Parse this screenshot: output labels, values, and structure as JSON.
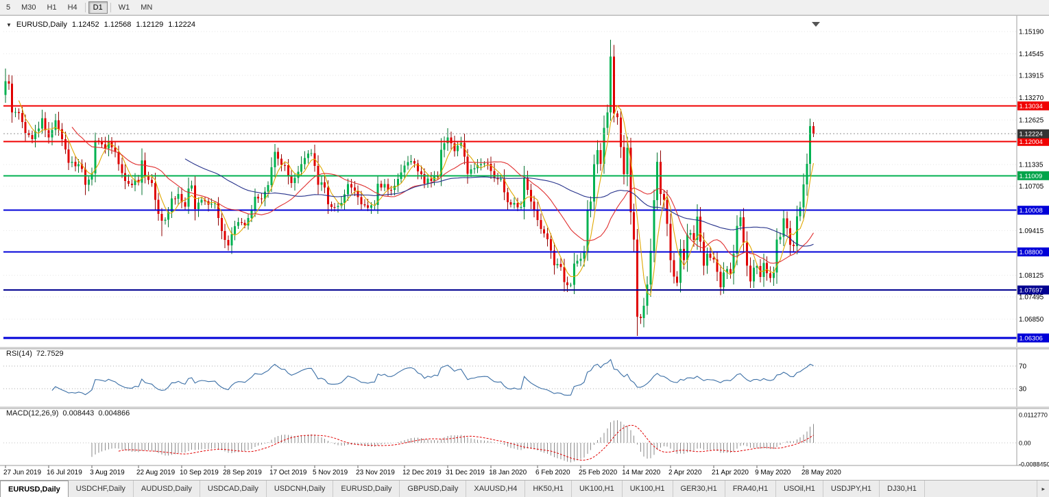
{
  "toolbar": {
    "timeframes": [
      "5",
      "M30",
      "H1",
      "H4",
      "D1",
      "W1",
      "MN"
    ],
    "active": "D1"
  },
  "chart": {
    "symbol_label": "EURUSD,Daily",
    "ohlc": {
      "open": "1.12452",
      "high": "1.12568",
      "low": "1.12129",
      "close": "1.12224"
    },
    "icons": {
      "expand": "▼"
    }
  },
  "rsi": {
    "name": "RSI(14)",
    "value": "72.7529"
  },
  "macd": {
    "name": "MACD(12,26,9)",
    "value_main": "0.008443",
    "value_signal": "0.004866"
  },
  "tabs": {
    "active_index": 0,
    "scroll_icon": "▸",
    "labels": [
      "EURUSD,Daily",
      "USDCHF,Daily",
      "AUDUSD,Daily",
      "USDCAD,Daily",
      "USDCNH,Daily",
      "EURUSD,Daily",
      "GBPUSD,Daily",
      "XAUUSD,H4",
      "HK50,H1",
      "UK100,H1",
      "UK100,H1",
      "GER30,H1",
      "FRA40,H1",
      "USOil,H1",
      "USDJPY,H1",
      "DJ30,H1"
    ]
  },
  "chart_data": {
    "type": "candlestick",
    "title": "EURUSD,Daily",
    "symbol": "EURUSD",
    "timeframe": "Daily",
    "bars": 244,
    "ylim": [
      1.0605,
      1.1549
    ],
    "current_price": 1.12224,
    "x_axis": {
      "labels": [
        "27 Jun 2019",
        "16 Jul 2019",
        "3 Aug 2019",
        "22 Aug 2019",
        "10 Sep 2019",
        "28 Sep 2019",
        "17 Oct 2019",
        "5 Nov 2019",
        "23 Nov 2019",
        "12 Dec 2019",
        "31 Dec 2019",
        "18 Jan 2020",
        "6 Feb 2020",
        "25 Feb 2020",
        "14 Mar 2020",
        "2 Apr 2020",
        "21 Apr 2020",
        "9 May 2020",
        "28 May 2020"
      ],
      "indices": [
        0,
        13,
        26,
        40,
        53,
        66,
        80,
        93,
        106,
        120,
        133,
        146,
        160,
        173,
        186,
        200,
        213,
        226,
        240
      ]
    },
    "y_axis": {
      "ticks": [
        "1.15190",
        "1.14545",
        "1.13915",
        "1.13270",
        "1.12625",
        "1.11335",
        "1.10705",
        "1.09415",
        "1.08125",
        "1.07495",
        "1.06850"
      ],
      "ref_price": 1.1519
    },
    "close_anchors": [
      [
        0,
        1.1375
      ],
      [
        1,
        1.1368
      ],
      [
        2,
        1.1285
      ],
      [
        4,
        1.1282
      ],
      [
        6,
        1.1225
      ],
      [
        8,
        1.1207
      ],
      [
        11,
        1.1268
      ],
      [
        13,
        1.1212
      ],
      [
        15,
        1.1262
      ],
      [
        17,
        1.1207
      ],
      [
        19,
        1.1138
      ],
      [
        21,
        1.1128
      ],
      [
        23,
        1.112
      ],
      [
        24,
        1.1075
      ],
      [
        26,
        1.1108
      ],
      [
        27,
        1.1203
      ],
      [
        28,
        1.12
      ],
      [
        30,
        1.118
      ],
      [
        31,
        1.12
      ],
      [
        33,
        1.117
      ],
      [
        35,
        1.1109
      ],
      [
        37,
        1.1078
      ],
      [
        39,
        1.1089
      ],
      [
        40,
        1.1081
      ],
      [
        41,
        1.1145
      ],
      [
        42,
        1.1101
      ],
      [
        44,
        1.108
      ],
      [
        46,
        1.099
      ],
      [
        47,
        1.097
      ],
      [
        48,
        1.0973
      ],
      [
        50,
        1.1035
      ],
      [
        52,
        1.1048
      ],
      [
        54,
        1.1011
      ],
      [
        55,
        1.1064
      ],
      [
        56,
        1.1073
      ],
      [
        57,
        1.1004
      ],
      [
        59,
        1.1031
      ],
      [
        61,
        1.1017
      ],
      [
        63,
        1.1021
      ],
      [
        65,
        1.0941
      ],
      [
        67,
        1.0899
      ],
      [
        68,
        1.0932
      ],
      [
        70,
        1.0966
      ],
      [
        72,
        1.0957
      ],
      [
        74,
        1.1002
      ],
      [
        75,
        1.104
      ],
      [
        77,
        1.1033
      ],
      [
        79,
        1.1074
      ],
      [
        80,
        1.1125
      ],
      [
        81,
        1.117
      ],
      [
        82,
        1.115
      ],
      [
        84,
        1.1131
      ],
      [
        86,
        1.108
      ],
      [
        88,
        1.1113
      ],
      [
        90,
        1.1152
      ],
      [
        92,
        1.1166
      ],
      [
        94,
        1.1075
      ],
      [
        96,
        1.1067
      ],
      [
        97,
        1.1018
      ],
      [
        99,
        1.101
      ],
      [
        101,
        1.1022
      ],
      [
        103,
        1.1077
      ],
      [
        105,
        1.1058
      ],
      [
        107,
        1.1018
      ],
      [
        109,
        1.1008
      ],
      [
        111,
        1.1016
      ],
      [
        112,
        1.1078
      ],
      [
        114,
        1.1077
      ],
      [
        116,
        1.106
      ],
      [
        118,
        1.1092
      ],
      [
        120,
        1.113
      ],
      [
        122,
        1.1143
      ],
      [
        124,
        1.1114
      ],
      [
        126,
        1.1078
      ],
      [
        128,
        1.1086
      ],
      [
        130,
        1.1098
      ],
      [
        131,
        1.1176
      ],
      [
        133,
        1.1212
      ],
      [
        135,
        1.1172
      ],
      [
        137,
        1.1196
      ],
      [
        139,
        1.1107
      ],
      [
        141,
        1.1122
      ],
      [
        143,
        1.1134
      ],
      [
        145,
        1.1135
      ],
      [
        147,
        1.1095
      ],
      [
        149,
        1.1092
      ],
      [
        151,
        1.1024
      ],
      [
        153,
        1.1022
      ],
      [
        155,
        1.101
      ],
      [
        156,
        1.1094
      ],
      [
        157,
        1.106
      ],
      [
        159,
        1.1
      ],
      [
        161,
        1.0946
      ],
      [
        163,
        1.0917
      ],
      [
        165,
        1.0841
      ],
      [
        167,
        1.0836
      ],
      [
        168,
        1.0792
      ],
      [
        170,
        1.0785
      ],
      [
        171,
        1.0846
      ],
      [
        172,
        1.0854
      ],
      [
        174,
        1.0881
      ],
      [
        175,
        1.0999
      ],
      [
        176,
        1.1026
      ],
      [
        177,
        1.1134
      ],
      [
        178,
        1.1175
      ],
      [
        179,
        1.1135
      ],
      [
        180,
        1.124
      ],
      [
        181,
        1.1284
      ],
      [
        182,
        1.1446
      ],
      [
        183,
        1.1281
      ],
      [
        184,
        1.127
      ],
      [
        185,
        1.1184
      ],
      [
        186,
        1.1105
      ],
      [
        187,
        1.1182
      ],
      [
        188,
        1.0995
      ],
      [
        189,
        1.0916
      ],
      [
        190,
        1.0692
      ],
      [
        191,
        1.0688
      ],
      [
        192,
        1.0724
      ],
      [
        193,
        1.0786
      ],
      [
        194,
        1.0883
      ],
      [
        195,
        1.103
      ],
      [
        196,
        1.1141
      ],
      [
        197,
        1.1048
      ],
      [
        198,
        1.1031
      ],
      [
        199,
        1.0961
      ],
      [
        200,
        1.0856
      ],
      [
        201,
        1.0808
      ],
      [
        202,
        1.0791
      ],
      [
        203,
        1.0889
      ],
      [
        204,
        1.0856
      ],
      [
        205,
        1.093
      ],
      [
        206,
        1.0935
      ],
      [
        207,
        1.0915
      ],
      [
        208,
        1.0982
      ],
      [
        209,
        1.091
      ],
      [
        210,
        1.084
      ],
      [
        211,
        1.0875
      ],
      [
        212,
        1.0863
      ],
      [
        213,
        1.0858
      ],
      [
        214,
        1.0822
      ],
      [
        215,
        1.0778
      ],
      [
        216,
        1.082
      ],
      [
        217,
        1.083
      ],
      [
        218,
        1.0818
      ],
      [
        219,
        1.0875
      ],
      [
        220,
        1.0955
      ],
      [
        221,
        1.098
      ],
      [
        222,
        1.0907
      ],
      [
        223,
        1.084
      ],
      [
        224,
        1.0794
      ],
      [
        225,
        1.0834
      ],
      [
        226,
        1.0839
      ],
      [
        227,
        1.0807
      ],
      [
        228,
        1.0848
      ],
      [
        229,
        1.0818
      ],
      [
        230,
        1.0804
      ],
      [
        231,
        1.082
      ],
      [
        232,
        1.0916
      ],
      [
        233,
        1.0924
      ],
      [
        234,
        1.0977
      ],
      [
        235,
        1.0949
      ],
      [
        236,
        1.0901
      ],
      [
        237,
        1.0897
      ],
      [
        238,
        1.0983
      ],
      [
        239,
        1.1009
      ],
      [
        240,
        1.1076
      ],
      [
        241,
        1.1135
      ],
      [
        242,
        1.1245
      ],
      [
        243,
        1.1222
      ]
    ],
    "extremes": {
      "0": {
        "high": 1.1412
      },
      "47": {
        "low": 1.0926
      },
      "133": {
        "high": 1.1239
      },
      "170": {
        "low": 1.0778
      },
      "182": {
        "high": 1.1495
      },
      "190": {
        "low": 1.0636
      },
      "242": {
        "high": 1.1267
      },
      "243": {
        "high": 1.12568,
        "low": 1.12129
      }
    },
    "hlines": [
      {
        "price": 1.13034,
        "color": "#f00000",
        "width": 2
      },
      {
        "price": 1.12004,
        "color": "#f00000",
        "width": 2
      },
      {
        "price": 1.11009,
        "color": "#00b050",
        "width": 2
      },
      {
        "price": 1.10008,
        "color": "#0000d8",
        "width": 2
      },
      {
        "price": 1.088,
        "color": "#0000d8",
        "width": 2
      },
      {
        "price": 1.07697,
        "color": "#000090",
        "width": 2
      },
      {
        "price": 1.06306,
        "color": "#0000d8",
        "width": 3
      }
    ],
    "badges": [
      {
        "price": 1.13034,
        "label": "1.13034",
        "color": "#f00000"
      },
      {
        "price": 1.12004,
        "label": "1.12004",
        "color": "#f00000"
      },
      {
        "price": 1.12224,
        "label": "1.12224",
        "color": "#343434"
      },
      {
        "price": 1.11009,
        "label": "1.11009",
        "color": "#00a44a"
      },
      {
        "price": 1.10008,
        "label": "1.10008",
        "color": "#0000d8"
      },
      {
        "price": 1.088,
        "label": "1.08800",
        "color": "#0000d8"
      },
      {
        "price": 1.07697,
        "label": "1.07697",
        "color": "#000090"
      },
      {
        "price": 1.06306,
        "label": "1.06306",
        "color": "#0000d8"
      }
    ],
    "colors": {
      "bull": "#00b250",
      "bear": "#e00000",
      "bull_wick": "#00702e",
      "bear_wick": "#8f0000"
    },
    "moving_averages": [
      {
        "period": 5,
        "color": "#e0a800"
      },
      {
        "period": 21,
        "color": "#e03030"
      },
      {
        "period": 55,
        "color": "#24308a"
      }
    ],
    "rsi": {
      "period": 14,
      "current": 72.7529,
      "levels": [
        70,
        30
      ],
      "line_color": "#3a6ea5"
    },
    "macd": {
      "fast": 12,
      "slow": 26,
      "signal": 9,
      "current_main": 0.008443,
      "current_signal": 0.004866,
      "axis_labels": [
        "0.0112770",
        "0.00",
        "-0.0088450"
      ],
      "histogram_color": "#8a8a8a",
      "signal_color": "#e00000"
    }
  }
}
